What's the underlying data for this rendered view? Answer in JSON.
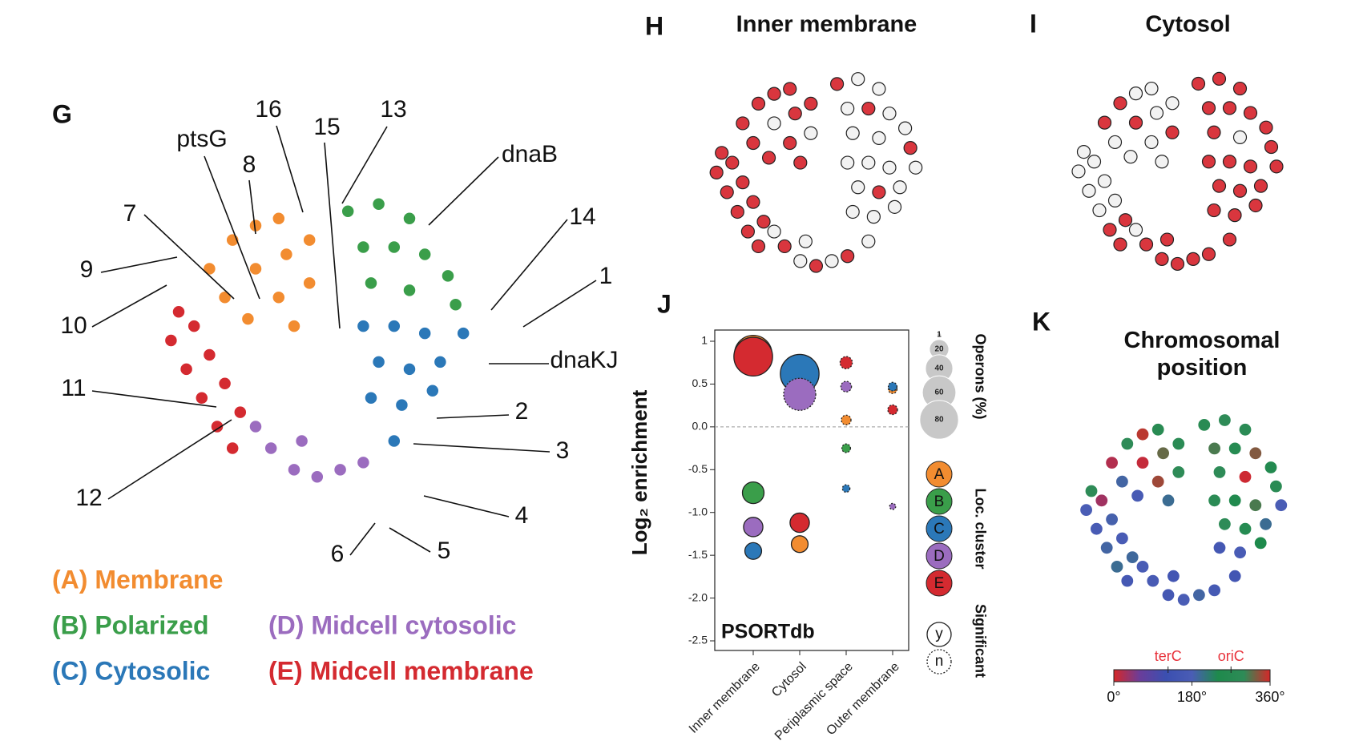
{
  "chart_data": [
    {
      "type": "scatter",
      "panel_label": "G",
      "xlim": [
        0,
        100
      ],
      "ylim": [
        0,
        100
      ],
      "annotations": [
        "16",
        "13",
        "15",
        "ptsG",
        "8",
        "7",
        "9",
        "10",
        "11",
        "12",
        "dnaB",
        "14",
        "1",
        "dnaKJ",
        "2",
        "3",
        "4",
        "5",
        "6"
      ],
      "series": [
        {
          "name": "(A) Membrane",
          "color": "#f28c30",
          "x": [
            18,
            24,
            30,
            36,
            22,
            30,
            38,
            44,
            28,
            36,
            44,
            40
          ],
          "y": [
            72,
            80,
            84,
            86,
            64,
            72,
            76,
            80,
            58,
            64,
            68,
            56
          ]
        },
        {
          "name": "(B) Polarized",
          "color": "#3a9e4a",
          "x": [
            54,
            62,
            70,
            58,
            66,
            74,
            80,
            60,
            70,
            82
          ],
          "y": [
            88,
            90,
            86,
            78,
            78,
            76,
            70,
            68,
            66,
            62
          ]
        },
        {
          "name": "(C) Cytosolic",
          "color": "#2b78b8",
          "x": [
            58,
            66,
            74,
            84,
            62,
            70,
            78,
            60,
            68,
            76,
            66
          ],
          "y": [
            56,
            56,
            54,
            54,
            46,
            44,
            46,
            36,
            34,
            38,
            24
          ]
        },
        {
          "name": "(D) Midcell cytosolic",
          "color": "#9b6cbf",
          "x": [
            34,
            40,
            46,
            52,
            58,
            30,
            42
          ],
          "y": [
            22,
            16,
            14,
            16,
            18,
            28,
            24
          ]
        },
        {
          "name": "(E) Midcell membrane",
          "color": "#d42a30",
          "x": [
            8,
            12,
            16,
            20,
            24,
            10,
            18,
            22,
            26,
            14
          ],
          "y": [
            52,
            44,
            36,
            28,
            22,
            60,
            48,
            40,
            32,
            56
          ]
        }
      ]
    },
    {
      "type": "scatter",
      "panel_label": "H",
      "title": "Inner membrane",
      "xlim": [
        0,
        100
      ],
      "ylim": [
        0,
        100
      ],
      "color": "#d9363e",
      "base_color": "#f2f2f2",
      "x": [
        18,
        24,
        30,
        36,
        22,
        30,
        38,
        44,
        28,
        36,
        44,
        40,
        54,
        62,
        70,
        58,
        66,
        74,
        80,
        60,
        70,
        82,
        58,
        66,
        74,
        84,
        62,
        70,
        78,
        60,
        68,
        76,
        66,
        34,
        40,
        46,
        52,
        58,
        30,
        42,
        8,
        12,
        16,
        20,
        24,
        10,
        18,
        22,
        26,
        14
      ],
      "y": [
        72,
        80,
        84,
        86,
        64,
        72,
        76,
        80,
        58,
        64,
        68,
        56,
        88,
        90,
        86,
        78,
        78,
        76,
        70,
        68,
        66,
        62,
        56,
        56,
        54,
        54,
        46,
        44,
        46,
        36,
        34,
        38,
        24,
        22,
        16,
        14,
        16,
        18,
        28,
        24,
        52,
        44,
        36,
        28,
        22,
        60,
        48,
        40,
        32,
        56
      ],
      "highlight": [
        true,
        true,
        true,
        true,
        true,
        false,
        true,
        true,
        true,
        true,
        false,
        true,
        true,
        false,
        false,
        false,
        true,
        false,
        false,
        false,
        false,
        true,
        false,
        false,
        false,
        false,
        false,
        true,
        false,
        false,
        false,
        false,
        false,
        true,
        false,
        true,
        false,
        true,
        false,
        false,
        true,
        true,
        true,
        true,
        true,
        true,
        true,
        true,
        true,
        true
      ]
    },
    {
      "type": "scatter",
      "panel_label": "I",
      "title": "Cytosol",
      "xlim": [
        0,
        100
      ],
      "ylim": [
        0,
        100
      ],
      "color": "#d9363e",
      "base_color": "#f2f2f2",
      "x": [
        18,
        24,
        30,
        36,
        22,
        30,
        38,
        44,
        28,
        36,
        44,
        40,
        54,
        62,
        70,
        58,
        66,
        74,
        80,
        60,
        70,
        82,
        58,
        66,
        74,
        84,
        62,
        70,
        78,
        60,
        68,
        76,
        66,
        34,
        40,
        46,
        52,
        58,
        30,
        42,
        8,
        12,
        16,
        20,
        24,
        10,
        18,
        22,
        26,
        14
      ],
      "y": [
        72,
        80,
        84,
        86,
        64,
        72,
        76,
        80,
        58,
        64,
        68,
        56,
        88,
        90,
        86,
        78,
        78,
        76,
        70,
        68,
        66,
        62,
        56,
        56,
        54,
        54,
        46,
        44,
        46,
        36,
        34,
        38,
        24,
        22,
        16,
        14,
        16,
        18,
        28,
        24,
        52,
        44,
        36,
        28,
        22,
        60,
        48,
        40,
        32,
        56
      ],
      "highlight": [
        true,
        true,
        false,
        false,
        false,
        true,
        false,
        false,
        false,
        false,
        true,
        false,
        true,
        true,
        true,
        true,
        true,
        true,
        true,
        true,
        false,
        true,
        true,
        true,
        true,
        true,
        true,
        true,
        true,
        true,
        true,
        true,
        true,
        true,
        true,
        true,
        true,
        true,
        false,
        true,
        false,
        false,
        false,
        true,
        true,
        false,
        false,
        false,
        true,
        false
      ]
    },
    {
      "type": "bubble",
      "panel_label": "J",
      "y_label": "Log₂ enrichment",
      "annotation": "PSORTdb",
      "categories": [
        "Inner membrane",
        "Cytosol",
        "Periplasmic space",
        "Outer membrane"
      ],
      "ylim": [
        -2.5,
        1
      ],
      "yticks": [
        -2.5,
        {
          "value": -2,
          "label": "-2.0"
        },
        -1.5,
        {
          "value": -1,
          "label": "-1.0"
        },
        -0.5,
        {
          "value": 0,
          "label": "0.0"
        },
        0.5,
        1
      ],
      "zero_line": true,
      "series": [
        {
          "name": "A",
          "color": "#f28c30",
          "values": [
            0.85,
            -1.37,
            0.08,
            0.44
          ],
          "sizes": [
            75,
            15,
            5,
            4
          ],
          "significant": [
            true,
            true,
            false,
            false
          ]
        },
        {
          "name": "B",
          "color": "#3a9e4a",
          "values": [
            -0.77,
            0.45,
            -0.25,
            null
          ],
          "sizes": [
            25,
            20,
            4,
            null
          ],
          "significant": [
            true,
            true,
            false,
            false
          ]
        },
        {
          "name": "C",
          "color": "#2b78b8",
          "values": [
            -1.45,
            0.62,
            -0.72,
            0.47
          ],
          "sizes": [
            15,
            80,
            3,
            4
          ],
          "significant": [
            true,
            true,
            false,
            false
          ]
        },
        {
          "name": "D",
          "color": "#9b6cbf",
          "values": [
            -1.17,
            0.38,
            0.47,
            -0.93
          ],
          "sizes": [
            20,
            55,
            6,
            2
          ],
          "significant": [
            true,
            false,
            false,
            false
          ]
        },
        {
          "name": "E",
          "color": "#d42a30",
          "values": [
            0.82,
            -1.12,
            0.75,
            0.2
          ],
          "sizes": [
            80,
            20,
            8,
            5
          ],
          "significant": [
            true,
            true,
            false,
            false
          ]
        }
      ],
      "size_legend": {
        "title": "Operons (%)",
        "values": [
          1,
          20,
          40,
          60,
          80
        ]
      },
      "color_legend_title": "Loc. cluster",
      "significance_legend": {
        "title": "Significant",
        "labels": [
          "y",
          "n"
        ]
      }
    },
    {
      "type": "scatter",
      "panel_label": "K",
      "title": "Chromosomal position",
      "xlim": [
        0,
        100
      ],
      "ylim": [
        0,
        100
      ],
      "x": [
        18,
        24,
        30,
        36,
        22,
        30,
        38,
        44,
        28,
        36,
        44,
        40,
        54,
        62,
        70,
        58,
        66,
        74,
        80,
        60,
        70,
        82,
        58,
        66,
        74,
        84,
        62,
        70,
        78,
        60,
        68,
        76,
        66,
        34,
        40,
        46,
        52,
        58,
        30,
        42,
        8,
        12,
        16,
        20,
        24,
        10,
        18,
        22,
        26,
        14
      ],
      "y": [
        72,
        80,
        84,
        86,
        64,
        72,
        76,
        80,
        58,
        64,
        68,
        56,
        88,
        90,
        86,
        78,
        78,
        76,
        70,
        68,
        66,
        62,
        56,
        56,
        54,
        54,
        46,
        44,
        46,
        36,
        34,
        38,
        24,
        22,
        16,
        14,
        16,
        18,
        28,
        24,
        52,
        44,
        36,
        28,
        22,
        60,
        48,
        40,
        32,
        56
      ],
      "values": [
        20,
        300,
        350,
        280,
        190,
        10,
        320,
        290,
        170,
        340,
        300,
        200,
        280,
        300,
        290,
        310,
        270,
        330,
        260,
        300,
        5,
        285,
        290,
        250,
        310,
        180,
        300,
        270,
        200,
        160,
        175,
        240,
        150,
        170,
        160,
        180,
        190,
        165,
        175,
        150,
        180,
        170,
        190,
        200,
        160,
        300,
        185,
        175,
        195,
        30
      ],
      "colormap": [
        "#d62728",
        "#6a3d9a",
        "#3b4fb0",
        "#4a5db5",
        "#1e8a4c",
        "#2e8b57",
        "#d62728"
      ],
      "colorbar": {
        "lim": [
          0,
          360
        ],
        "ticks": [
          {
            "value": 0,
            "label": "0°"
          },
          {
            "value": 180,
            "label": "180°"
          },
          {
            "value": 360,
            "label": "360°"
          }
        ],
        "markers": [
          {
            "value": 125,
            "label": "terC"
          },
          {
            "value": 270,
            "label": "oriC"
          }
        ]
      }
    }
  ]
}
